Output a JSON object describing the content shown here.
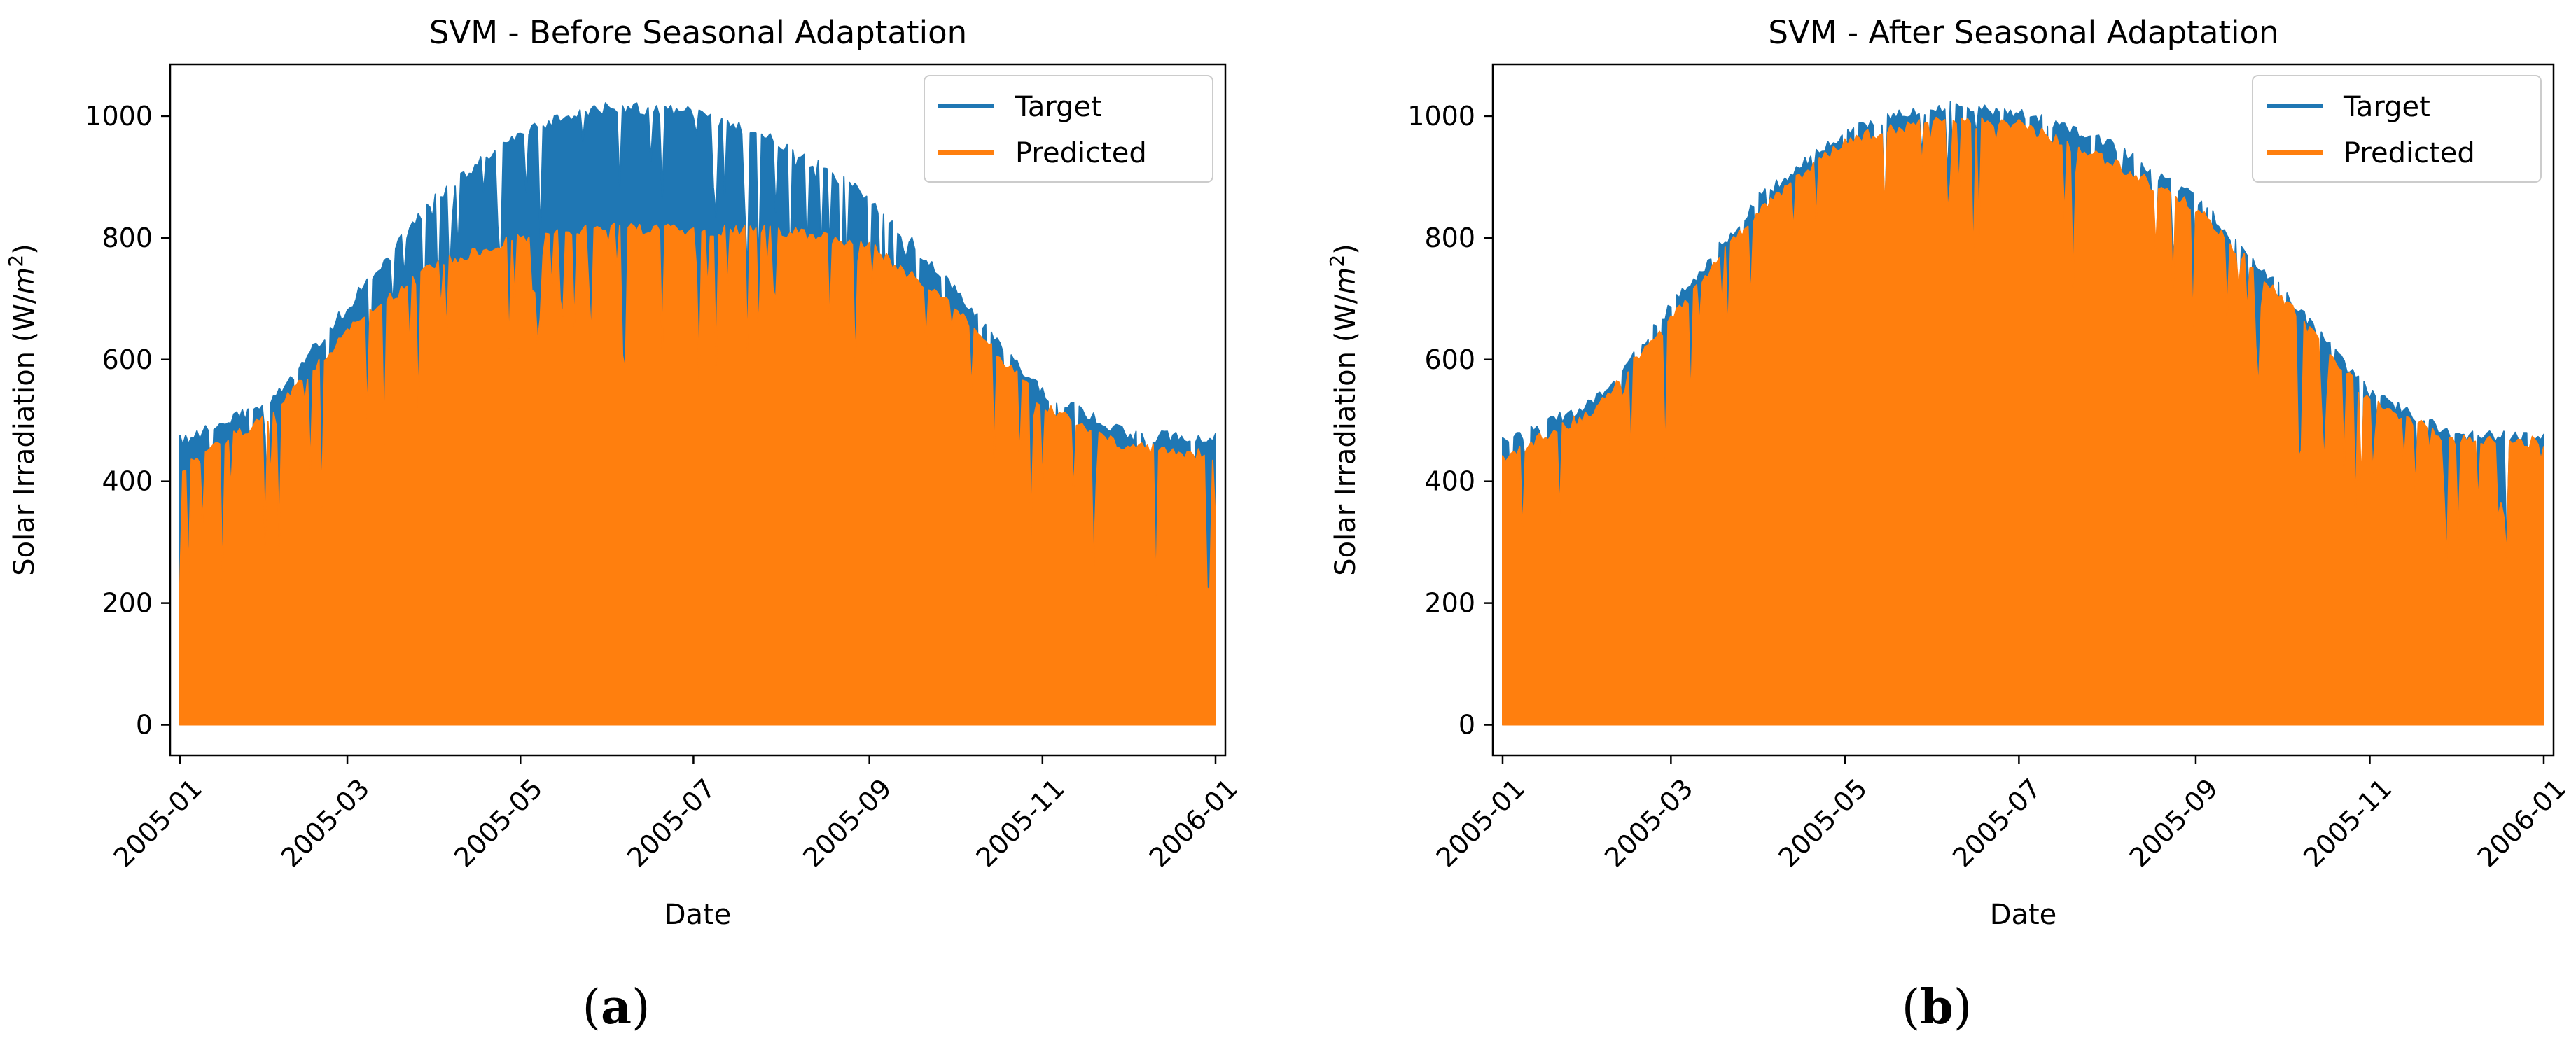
{
  "panels": [
    {
      "label_pre": "(",
      "label_letter": "a",
      "label_post": ")"
    },
    {
      "label_pre": "(",
      "label_letter": "b",
      "label_post": ")"
    }
  ],
  "colors": {
    "target": "#1f77b4",
    "predicted": "#ff7f0e"
  },
  "chart_data": [
    {
      "type": "line",
      "title": "SVM - Before Seasonal Adaptation",
      "xlabel": "Date",
      "ylabel_pre": "Solar Irradiation (W/",
      "ylabel_var": "m",
      "ylabel_sup": "2",
      "ylabel_post": ")",
      "xlim": [
        "2005-01-01",
        "2006-01-01"
      ],
      "ylim": [
        -50,
        1085
      ],
      "yticks": [
        0,
        200,
        400,
        600,
        800,
        1000
      ],
      "xticks": [
        "2005-01",
        "2005-03",
        "2005-05",
        "2005-07",
        "2005-09",
        "2005-11",
        "2006-01"
      ],
      "legend": {
        "position": "top-right",
        "entries": [
          "Target",
          "Predicted"
        ]
      },
      "series": [
        {
          "name": "Target",
          "note": "daily peak envelope of hourly series (min is 0 each night)",
          "x": [
            "2005-01-01",
            "2005-02-01",
            "2005-03-01",
            "2005-04-01",
            "2005-05-01",
            "2005-06-01",
            "2005-07-01",
            "2005-08-01",
            "2005-09-01",
            "2005-10-01",
            "2005-11-01",
            "2005-12-01",
            "2006-01-01"
          ],
          "values": [
            480,
            540,
            700,
            880,
            990,
            1030,
            1020,
            970,
            880,
            730,
            560,
            490,
            485
          ]
        },
        {
          "name": "Predicted",
          "note": "daily peak envelope of hourly series (min is 0 each night)",
          "x": [
            "2005-01-01",
            "2005-02-01",
            "2005-03-01",
            "2005-04-01",
            "2005-05-01",
            "2005-06-01",
            "2005-07-01",
            "2005-08-01",
            "2005-09-01",
            "2005-10-01",
            "2005-11-01",
            "2005-12-01",
            "2006-01-01"
          ],
          "values": [
            435,
            520,
            660,
            770,
            815,
            830,
            825,
            825,
            800,
            700,
            540,
            470,
            455
          ]
        }
      ]
    },
    {
      "type": "line",
      "title": "SVM - After Seasonal Adaptation",
      "xlabel": "Date",
      "ylabel_pre": "Solar Irradiation (W/",
      "ylabel_var": "m",
      "ylabel_sup": "2",
      "ylabel_post": ")",
      "xlim": [
        "2005-01-01",
        "2006-01-01"
      ],
      "ylim": [
        -50,
        1085
      ],
      "yticks": [
        0,
        200,
        400,
        600,
        800,
        1000
      ],
      "xticks": [
        "2005-01",
        "2005-03",
        "2005-05",
        "2005-07",
        "2005-09",
        "2005-11",
        "2006-01"
      ],
      "legend": {
        "position": "top-right",
        "entries": [
          "Target",
          "Predicted"
        ]
      },
      "series": [
        {
          "name": "Target",
          "note": "daily peak envelope of hourly series (min is 0 each night)",
          "x": [
            "2005-01-01",
            "2005-02-01",
            "2005-03-01",
            "2005-04-01",
            "2005-05-01",
            "2005-06-01",
            "2005-07-01",
            "2005-08-01",
            "2005-09-01",
            "2005-10-01",
            "2005-11-01",
            "2005-12-01",
            "2006-01-01"
          ],
          "values": [
            480,
            540,
            700,
            880,
            990,
            1030,
            1020,
            970,
            880,
            730,
            560,
            490,
            485
          ]
        },
        {
          "name": "Predicted",
          "note": "daily peak envelope of hourly series (min is 0 each night)",
          "x": [
            "2005-01-01",
            "2005-02-01",
            "2005-03-01",
            "2005-04-01",
            "2005-05-01",
            "2005-06-01",
            "2005-07-01",
            "2005-08-01",
            "2005-09-01",
            "2005-10-01",
            "2005-11-01",
            "2005-12-01",
            "2006-01-01"
          ],
          "values": [
            455,
            525,
            680,
            860,
            975,
            1005,
            1000,
            940,
            865,
            715,
            545,
            480,
            480
          ]
        }
      ]
    }
  ]
}
